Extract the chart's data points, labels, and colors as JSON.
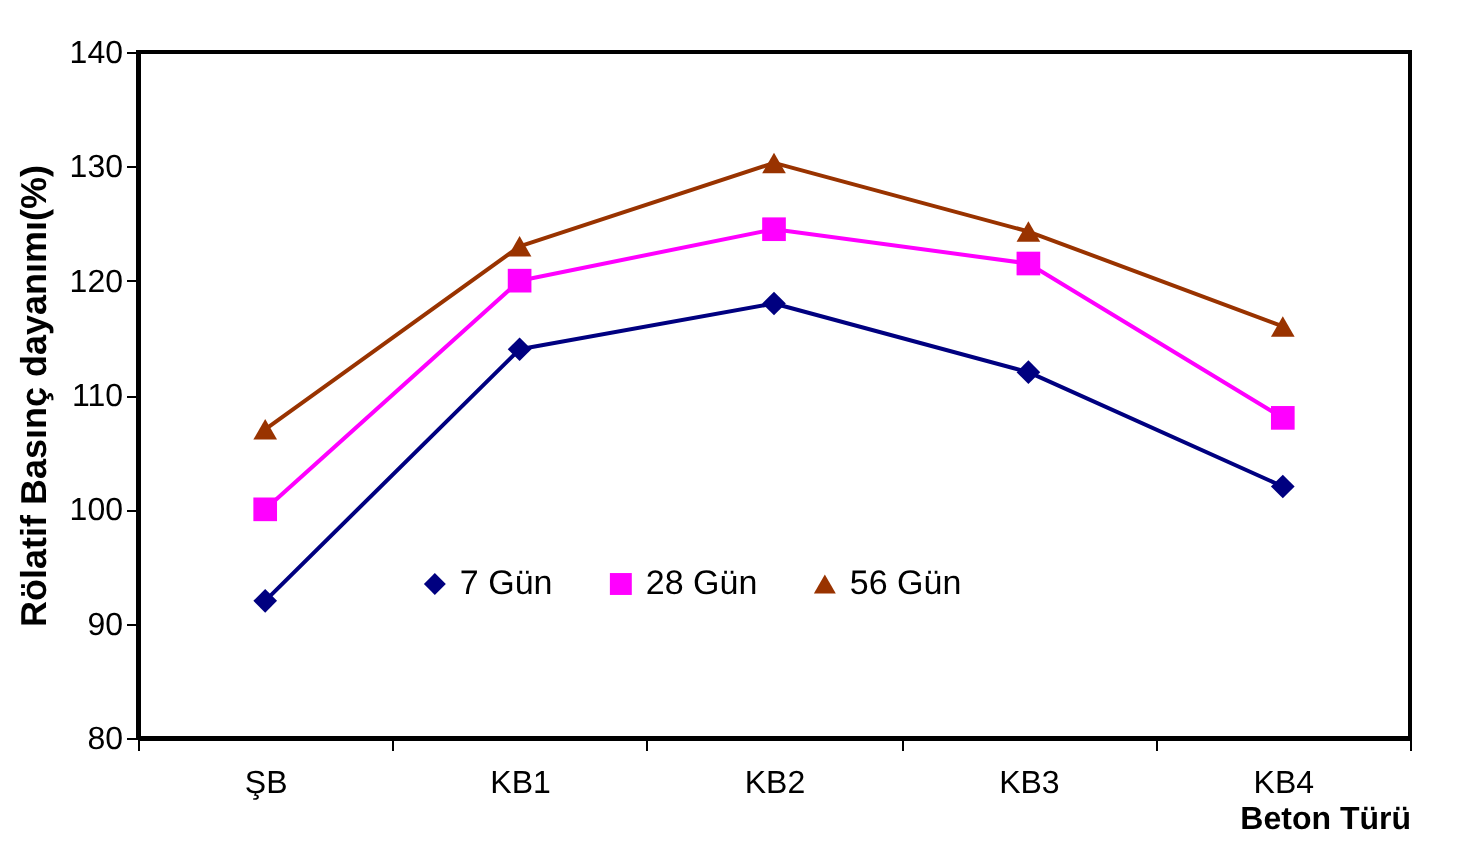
{
  "chart_data": {
    "type": "line",
    "xlabel": "Beton Türü",
    "ylabel": "Rölatif Basınç dayanımı(%)",
    "categories": [
      "ŞB",
      "KB1",
      "KB2",
      "KB3",
      "KB4"
    ],
    "series": [
      {
        "name": "7 Gün",
        "color": "#000080",
        "marker": "diamond",
        "values": [
          92,
          114,
          118,
          112,
          102
        ]
      },
      {
        "name": "28 Gün",
        "color": "#ff00ff",
        "marker": "square",
        "values": [
          100,
          120,
          124.5,
          121.5,
          108
        ]
      },
      {
        "name": "56 Gün",
        "color": "#993300",
        "marker": "triangle",
        "values": [
          107,
          123,
          130.3,
          124.3,
          116
        ]
      }
    ],
    "ylim": [
      80,
      140
    ],
    "yticks": [
      80,
      90,
      100,
      110,
      120,
      130,
      140
    ],
    "grid": false,
    "legend": "bottom",
    "line_style": "solid"
  }
}
